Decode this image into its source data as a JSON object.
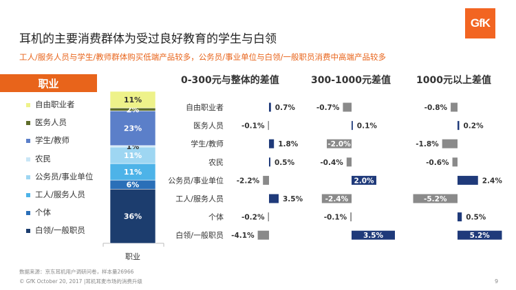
{
  "logo": {
    "text": "GfK",
    "color": "#f26522"
  },
  "header": {
    "title": "耳机的主要消费群体为受过良好教育的学生与白领",
    "subtitle": "工人/服务人员与学生/教师群体购买低端产品较多，公务员/事业单位与白领/一般职员消费中高端产品较多"
  },
  "occupation_box": {
    "label": "职业"
  },
  "sections": [
    "0-300元与整体的差值",
    "300-1000元差值",
    "1000元以上差值"
  ],
  "footer": {
    "source": "数据来源：京东耳机用户调研问卷，样本量26966",
    "copyright": "© GfK October 20, 2017 |耳机耳麦市场的消费升级",
    "page": "9"
  },
  "chart_data": [
    {
      "type": "bar",
      "stacked": true,
      "categories": [
        "职业"
      ],
      "series": [
        {
          "name": "白领/一般职员",
          "values": [
            36
          ],
          "color": "#1c3d6e",
          "label": "36%"
        },
        {
          "name": "个体",
          "values": [
            6
          ],
          "color": "#2a6fb8",
          "label": "6%"
        },
        {
          "name": "工人/服务人员",
          "values": [
            11
          ],
          "color": "#4db3e8",
          "label": "11%"
        },
        {
          "name": "公务员/事业单位",
          "values": [
            11
          ],
          "color": "#9ed6f2",
          "label": "11%"
        },
        {
          "name": "农民",
          "values": [
            1
          ],
          "color": "#c9e6f6",
          "label": "1%"
        },
        {
          "name": "学生/教师",
          "values": [
            23
          ],
          "color": "#5b7fc9",
          "label": "23%"
        },
        {
          "name": "医务人员",
          "values": [
            2
          ],
          "color": "#5f6d2a",
          "label": "2%"
        },
        {
          "name": "自由职业者",
          "values": [
            11
          ],
          "color": "#eef28a",
          "label": "11%"
        }
      ],
      "xlabel": "职业",
      "ylim": [
        0,
        101
      ],
      "legend_order": [
        "自由职业者",
        "医务人员",
        "学生/教师",
        "农民",
        "公务员/事业单位",
        "工人/服务人员",
        "个体",
        "白领/一般职员"
      ]
    },
    {
      "type": "bar",
      "orientation": "horizontal",
      "title": "0-300元与整体的差值",
      "categories": [
        "自由职业者",
        "医务人员",
        "学生/教师",
        "农民",
        "公务员/事业单位",
        "工人/服务人员",
        "个体",
        "白领/一般职员"
      ],
      "values": [
        0.7,
        -0.1,
        1.8,
        0.5,
        -2.2,
        3.5,
        -0.2,
        -4.1
      ],
      "labels": [
        "0.7%",
        "-0.1%",
        "1.8%",
        "0.5%",
        "-2.2%",
        "3.5%",
        "-0.2%",
        "-4.1%"
      ],
      "colors": {
        "positive": "#1f3a7a",
        "negative": "#8a8a8a"
      }
    },
    {
      "type": "bar",
      "orientation": "horizontal",
      "title": "300-1000元差值",
      "categories": [
        "自由职业者",
        "医务人员",
        "学生/教师",
        "农民",
        "公务员/事业单位",
        "工人/服务人员",
        "个体",
        "白领/一般职员"
      ],
      "values": [
        -0.7,
        0.1,
        -2.0,
        -0.4,
        2.0,
        -2.4,
        -0.1,
        3.5
      ],
      "labels": [
        "-0.7%",
        "0.1%",
        "-2.0%",
        "-0.4%",
        "2.0%",
        "-2.4%",
        "-0.1%",
        "3.5%"
      ],
      "colors": {
        "positive": "#1f3a7a",
        "negative": "#8a8a8a"
      }
    },
    {
      "type": "bar",
      "orientation": "horizontal",
      "title": "1000元以上差值",
      "categories": [
        "自由职业者",
        "医务人员",
        "学生/教师",
        "农民",
        "公务员/事业单位",
        "工人/服务人员",
        "个体",
        "白领/一般职员"
      ],
      "values": [
        -0.8,
        0.2,
        -1.8,
        -0.6,
        2.4,
        -5.2,
        0.5,
        5.2
      ],
      "labels": [
        "-0.8%",
        "0.2%",
        "-1.8%",
        "-0.6%",
        "2.4%",
        "-5.2%",
        "0.5%",
        "5.2%"
      ],
      "colors": {
        "positive": "#1f3a7a",
        "negative": "#8a8a8a"
      }
    }
  ]
}
